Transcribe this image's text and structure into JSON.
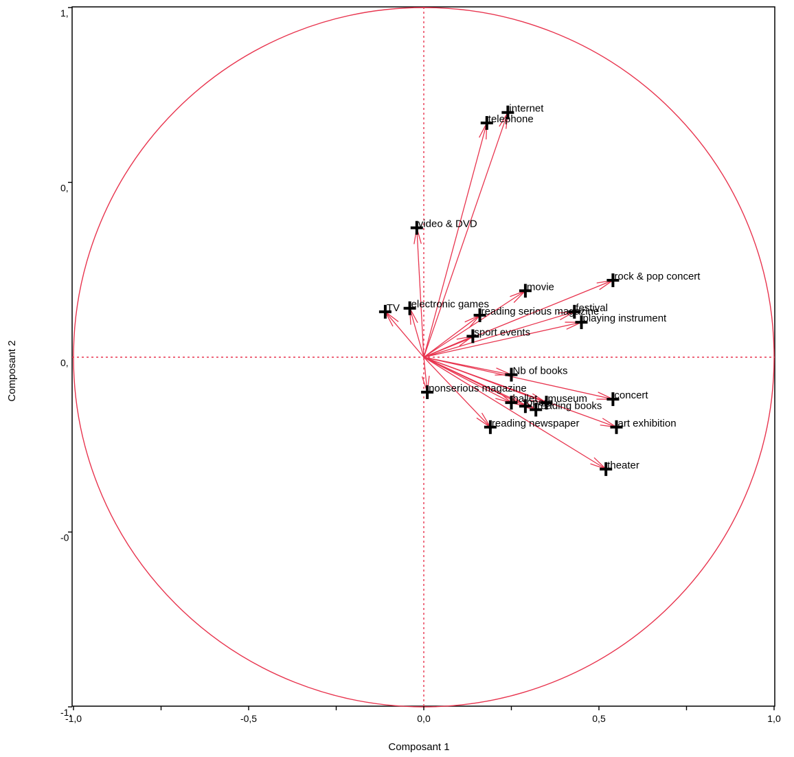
{
  "chart_data": {
    "type": "scatter",
    "subtype": "correlation circle (PCA variable loadings)",
    "xlabel": "Composant 1",
    "ylabel": "Composant 2",
    "xlim": [
      -1.0,
      1.0
    ],
    "ylim": [
      -1.0,
      1.0
    ],
    "x_tick_labels": [
      "-1,0",
      "-0,5",
      "0,0",
      "0,5",
      "1,0"
    ],
    "y_tick_labels": [
      "-1,",
      "-0",
      "0,",
      "0,",
      "1,"
    ],
    "grid": false,
    "circle_radius": 1.0,
    "arrow_origin": [
      0,
      0
    ],
    "colors": {
      "arrows": "#e8344e",
      "circle": "#e8344e",
      "markers": "#000000",
      "reference_lines": "#e8344e"
    },
    "points": [
      {
        "label": "internet",
        "x": 0.24,
        "y": 0.7
      },
      {
        "label": "telephone",
        "x": 0.18,
        "y": 0.67
      },
      {
        "label": "video & DVD",
        "x": -0.02,
        "y": 0.37
      },
      {
        "label": "rock & pop concert",
        "x": 0.54,
        "y": 0.22
      },
      {
        "label": "movie",
        "x": 0.29,
        "y": 0.19
      },
      {
        "label": "festival",
        "x": 0.43,
        "y": 0.13
      },
      {
        "label": "electronic games",
        "x": -0.04,
        "y": 0.14
      },
      {
        "label": "TV",
        "x": -0.11,
        "y": 0.13
      },
      {
        "label": "reading serious magazine",
        "x": 0.16,
        "y": 0.12
      },
      {
        "label": "playing instrument",
        "x": 0.45,
        "y": 0.1
      },
      {
        "label": "sport events",
        "x": 0.14,
        "y": 0.06
      },
      {
        "label": "Nb of books",
        "x": 0.25,
        "y": -0.05
      },
      {
        "label": "nonserious magazine",
        "x": 0.01,
        "y": -0.1
      },
      {
        "label": "concert",
        "x": 0.54,
        "y": -0.12
      },
      {
        "label": "ballet",
        "x": 0.25,
        "y": -0.13
      },
      {
        "label": "museum",
        "x": 0.35,
        "y": -0.13
      },
      {
        "label": "opera",
        "x": 0.29,
        "y": -0.14
      },
      {
        "label": "reading books",
        "x": 0.32,
        "y": -0.15
      },
      {
        "label": "art exhibition",
        "x": 0.55,
        "y": -0.2
      },
      {
        "label": "reading newspaper",
        "x": 0.19,
        "y": -0.2
      },
      {
        "label": "theater",
        "x": 0.52,
        "y": -0.32
      }
    ]
  }
}
